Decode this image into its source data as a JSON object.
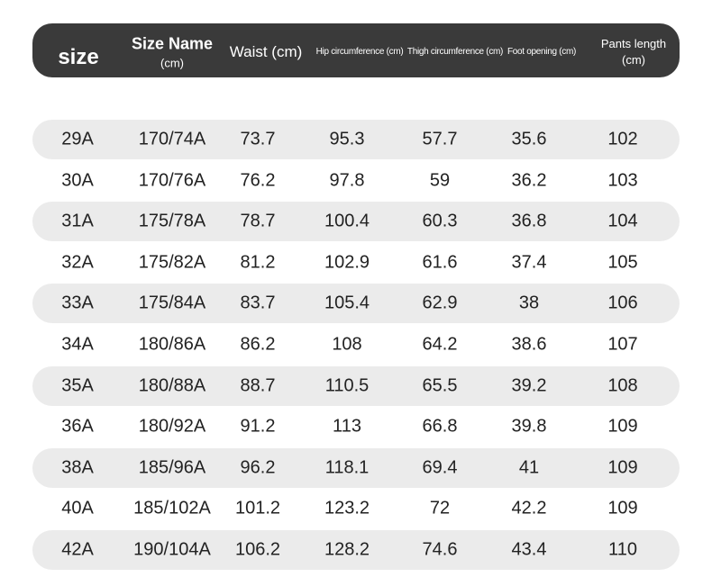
{
  "table": {
    "header": [
      [
        "size"
      ],
      [
        "Size Name",
        "(cm)"
      ],
      [
        "Waist (cm)"
      ],
      [
        "Hip circumference (cm)"
      ],
      [
        "Thigh circumference (cm)"
      ],
      [
        "Foot opening (cm)"
      ],
      [
        "Pants length",
        "(cm)"
      ]
    ],
    "rows": [
      [
        "29A",
        "170/74A",
        "73.7",
        "95.3",
        "57.7",
        "35.6",
        "102"
      ],
      [
        "30A",
        "170/76A",
        "76.2",
        "97.8",
        "59",
        "36.2",
        "103"
      ],
      [
        "31A",
        "175/78A",
        "78.7",
        "100.4",
        "60.3",
        "36.8",
        "104"
      ],
      [
        "32A",
        "175/82A",
        "81.2",
        "102.9",
        "61.6",
        "37.4",
        "105"
      ],
      [
        "33A",
        "175/84A",
        "83.7",
        "105.4",
        "62.9",
        "38",
        "106"
      ],
      [
        "34A",
        "180/86A",
        "86.2",
        "108",
        "64.2",
        "38.6",
        "107"
      ],
      [
        "35A",
        "180/88A",
        "88.7",
        "110.5",
        "65.5",
        "39.2",
        "108"
      ],
      [
        "36A",
        "180/92A",
        "91.2",
        "113",
        "66.8",
        "39.8",
        "109"
      ],
      [
        "38A",
        "185/96A",
        "96.2",
        "118.1",
        "69.4",
        "41",
        "109"
      ],
      [
        "40A",
        "185/102A",
        "101.2",
        "123.2",
        "72",
        "42.2",
        "109"
      ],
      [
        "42A",
        "190/104A",
        "106.2",
        "128.2",
        "74.6",
        "43.4",
        "110"
      ]
    ]
  }
}
